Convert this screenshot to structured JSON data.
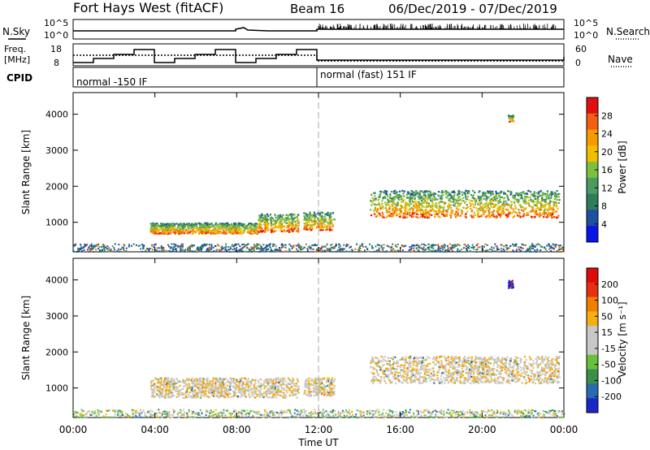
{
  "header": {
    "station": "Fort Hays West (fitACF)",
    "beam": "Beam 16",
    "date_range": "06/Dec/2019 - 07/Dec/2019"
  },
  "strips": {
    "nsky_label": "N.Sky",
    "nsky_top": "10^5",
    "nsky_bottom": "10^0",
    "nsearch_label": "N.Search",
    "nsearch_top": "10^5",
    "nsearch_bottom": "10^0",
    "freq_label_1": "Freq.",
    "freq_label_2": "[MHz]",
    "freq_top": "18",
    "freq_bottom": "8",
    "nave_label": "Nave",
    "nave_top": "60",
    "nave_bottom": "0",
    "cpid_label": "CPID",
    "cpid_1": "normal -150 IF",
    "cpid_2": "normal (fast) 151 IF"
  },
  "colors": {
    "power_scale": [
      "#0a14e6",
      "#1f4fa0",
      "#2e7d5a",
      "#4a9a62",
      "#7fbf3f",
      "#f0c000",
      "#f59a00",
      "#f06010",
      "#e01010"
    ],
    "velocity_scale": [
      "#1b27c8",
      "#2a6bb0",
      "#3a8f4a",
      "#68c03c",
      "#c8c8c8",
      "#c8c8c8",
      "#f5b010",
      "#f07f00",
      "#e83010",
      "#e00a0a"
    ]
  },
  "chart_data": [
    {
      "type": "heatmap",
      "panel": "power",
      "ylabel": "Slant Range [km]",
      "yticks": [
        1000,
        2000,
        3000,
        4000
      ],
      "ylim": [
        180,
        4600
      ],
      "xlim_hours": [
        0,
        24
      ],
      "colorbar_label": "Power [dB]",
      "colorbar_ticks": [
        4,
        8,
        12,
        16,
        20,
        24,
        28
      ],
      "colorbar_range": [
        0,
        32
      ],
      "regions": [
        {
          "time_start": "03:45",
          "time_end": "09:00",
          "range_km": [
            700,
            1000
          ],
          "dominant": "green / red"
        },
        {
          "time_start": "09:00",
          "time_end": "11:00",
          "range_km": [
            750,
            1250
          ],
          "dominant": "green / orange"
        },
        {
          "time_start": "11:15",
          "time_end": "12:45",
          "range_km": [
            800,
            1300
          ],
          "dominant": "green / orange"
        },
        {
          "time_start": "14:30",
          "time_end": "23:45",
          "range_km": [
            1150,
            1900
          ],
          "dominant": "green / yellow / red"
        },
        {
          "time_start": "21:15",
          "time_end": "21:30",
          "range_km": [
            3800,
            4000
          ],
          "dominant": "green"
        }
      ]
    },
    {
      "type": "heatmap",
      "panel": "velocity",
      "ylabel": "Slant Range [km]",
      "yticks": [
        1000,
        2000,
        3000,
        4000
      ],
      "ylim": [
        180,
        4600
      ],
      "xlim_hours": [
        0,
        24
      ],
      "xticks": [
        "00:00",
        "04:00",
        "08:00",
        "12:00",
        "16:00",
        "20:00",
        "00:00"
      ],
      "xlabel": "Time UT",
      "colorbar_label": "Velocity [m s⁻¹]",
      "colorbar_ticks": [
        200,
        100,
        50,
        15,
        -15,
        -50,
        -100,
        -200
      ],
      "regions": [
        {
          "time_start": "03:45",
          "time_end": "11:00",
          "range_km": [
            750,
            1300
          ],
          "dominant": "gray / orange"
        },
        {
          "time_start": "11:15",
          "time_end": "12:45",
          "range_km": [
            800,
            1300
          ],
          "dominant": "gray / orange"
        },
        {
          "time_start": "14:30",
          "time_end": "23:45",
          "range_km": [
            1150,
            1900
          ],
          "dominant": "gray"
        },
        {
          "time_start": "21:15",
          "time_end": "21:30",
          "range_km": [
            3800,
            4000
          ],
          "dominant": "blue / red"
        }
      ]
    }
  ]
}
